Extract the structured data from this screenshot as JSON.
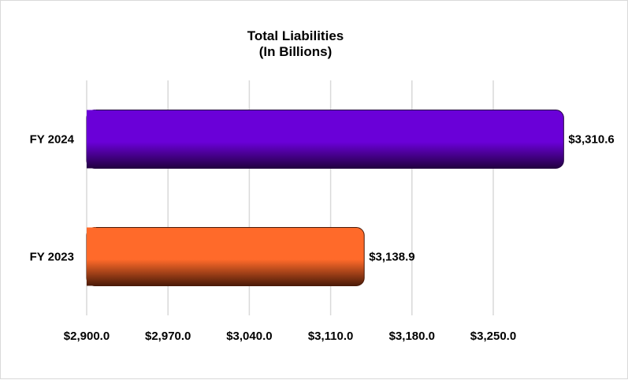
{
  "chart_data": {
    "type": "bar",
    "orientation": "horizontal",
    "title": "Total Liabilities",
    "subtitle": "(In Billions)",
    "categories": [
      "FY 2024",
      "FY 2023"
    ],
    "values": [
      3310.6,
      3138.9
    ],
    "data_labels": [
      "$3,310.6",
      "$3,138.9"
    ],
    "bar_colors": [
      "#6a00d8",
      "#ff6a2a"
    ],
    "bar_shadow_colors": [
      "#220040",
      "#4a1a08"
    ],
    "xlim": [
      2900,
      3320
    ],
    "xticks": [
      2900,
      2970,
      3040,
      3110,
      3180,
      3250
    ],
    "xtick_labels": [
      "$2,900.0",
      "$2,970.0",
      "$3,040.0",
      "$3,110.0",
      "$3,180.0",
      "$3,250.0"
    ],
    "gridlines": true,
    "gridline_color": "#d9d9d9",
    "legend": "none"
  }
}
